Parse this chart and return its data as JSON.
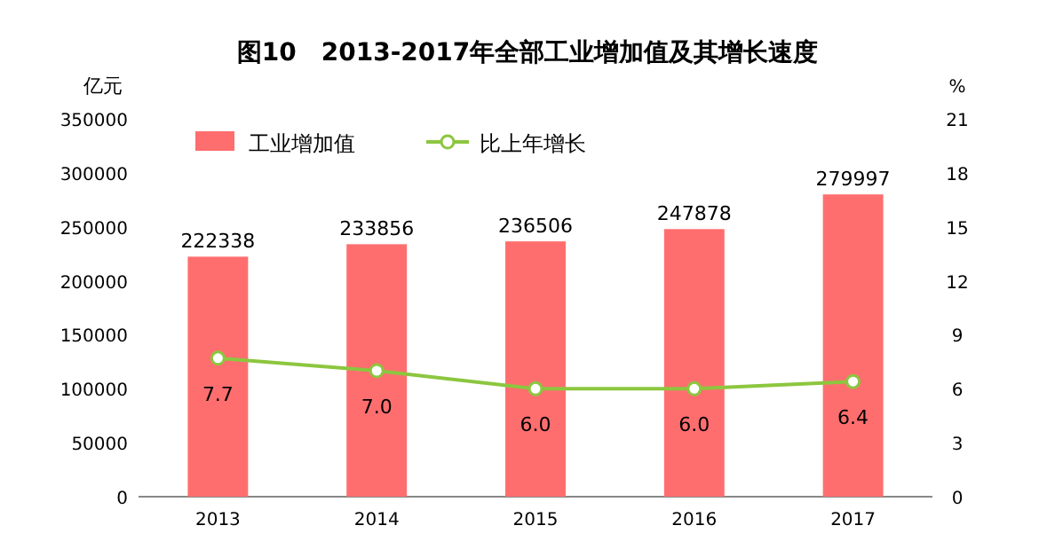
{
  "chart_data": {
    "type": "bar",
    "title": "图10　2013-2017年全部工业增加值及其增长速度",
    "ylabel": "亿元",
    "y2label": "%",
    "categories": [
      "2013",
      "2014",
      "2015",
      "2016",
      "2017"
    ],
    "series": [
      {
        "name": "工业增加值",
        "color": "#ff6e6e",
        "values": [
          222338,
          233856,
          236506,
          247878,
          279997
        ]
      },
      {
        "name": "比上年增长",
        "type": "line",
        "axis": "y2",
        "marker": "circle",
        "color": "#8cc63f",
        "values": [
          7.7,
          7.0,
          6.0,
          6.0,
          6.4
        ],
        "value_labels": [
          "7.7",
          "7.0",
          "6.0",
          "6.0",
          "6.4"
        ]
      }
    ],
    "ylim": [
      0,
      350000
    ],
    "yticks": [
      0,
      50000,
      100000,
      150000,
      200000,
      250000,
      300000,
      350000
    ],
    "y2lim": [
      0,
      21
    ],
    "y2ticks": [
      0,
      3,
      6,
      9,
      12,
      15,
      18,
      21
    ],
    "legend": "top left",
    "data_labels": true
  }
}
